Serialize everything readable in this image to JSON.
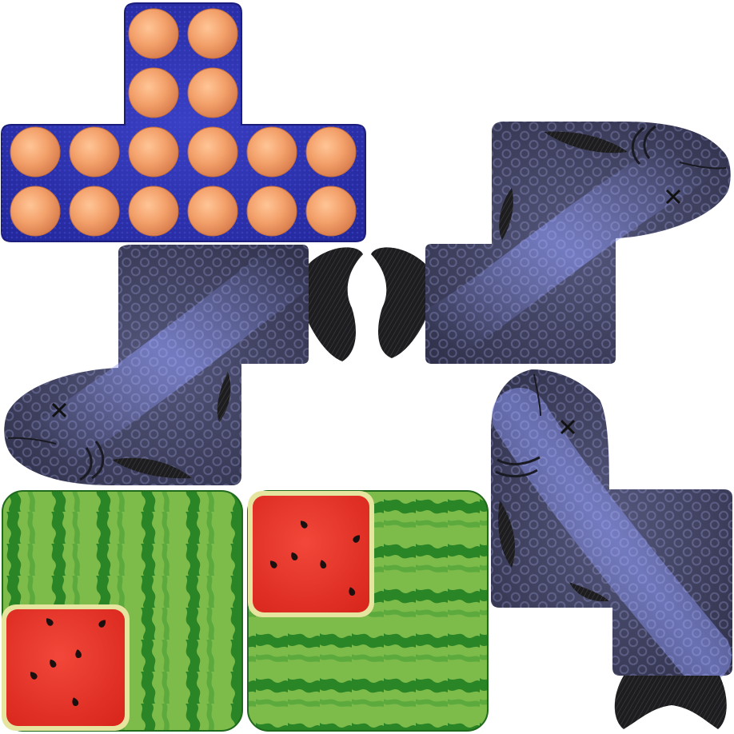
{
  "sprite_sheet": {
    "tiles": [
      {
        "kind": "egg-carton",
        "eggs": 16
      },
      {
        "kind": "fish",
        "facing": "right"
      },
      {
        "kind": "fish",
        "facing": "left"
      },
      {
        "kind": "fish",
        "facing": "up"
      },
      {
        "kind": "watermelon-vertical-stripes",
        "seeds": 6
      },
      {
        "kind": "watermelon-horizontal-stripes",
        "seeds": 6
      }
    ]
  },
  "colors": {
    "carton": "#2b2fa8",
    "egg": "#f2a36b",
    "fish_body": "#3e3f5e",
    "fish_glow": "#8a95f0",
    "fin": "#1b1b1d",
    "melon_rind_light": "#84c050",
    "melon_rind_dark": "#1f7a22",
    "melon_flesh": "#e53024",
    "melon_seed": "#1a1010"
  }
}
